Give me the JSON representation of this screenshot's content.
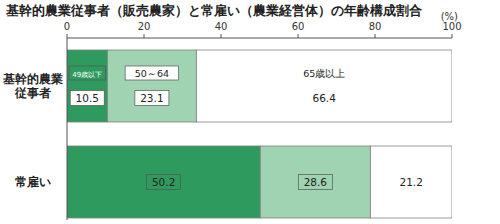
{
  "chart_data": {
    "type": "bar",
    "orientation": "horizontal",
    "stacked": true,
    "data_labels": true,
    "grid": false,
    "title": "基幹的農業従事者（販売農家）と常雇い（農業経営体）の年齢構成割合",
    "xlabel": "(%)",
    "categories": [
      "基幹的農業\n従事者",
      "常雇い"
    ],
    "series": [
      {
        "name": "49歳以下",
        "color": "#2e9a5e",
        "values": [
          10.5,
          50.2
        ]
      },
      {
        "name": "50～64",
        "color": "#9fd3b1",
        "values": [
          23.1,
          28.6
        ]
      },
      {
        "name": "65歳以上",
        "color": "#ffffff",
        "values": [
          66.4,
          21.2
        ]
      }
    ],
    "xlim": [
      0,
      100
    ],
    "xticks": [
      0,
      20,
      40,
      60,
      80,
      100
    ]
  }
}
